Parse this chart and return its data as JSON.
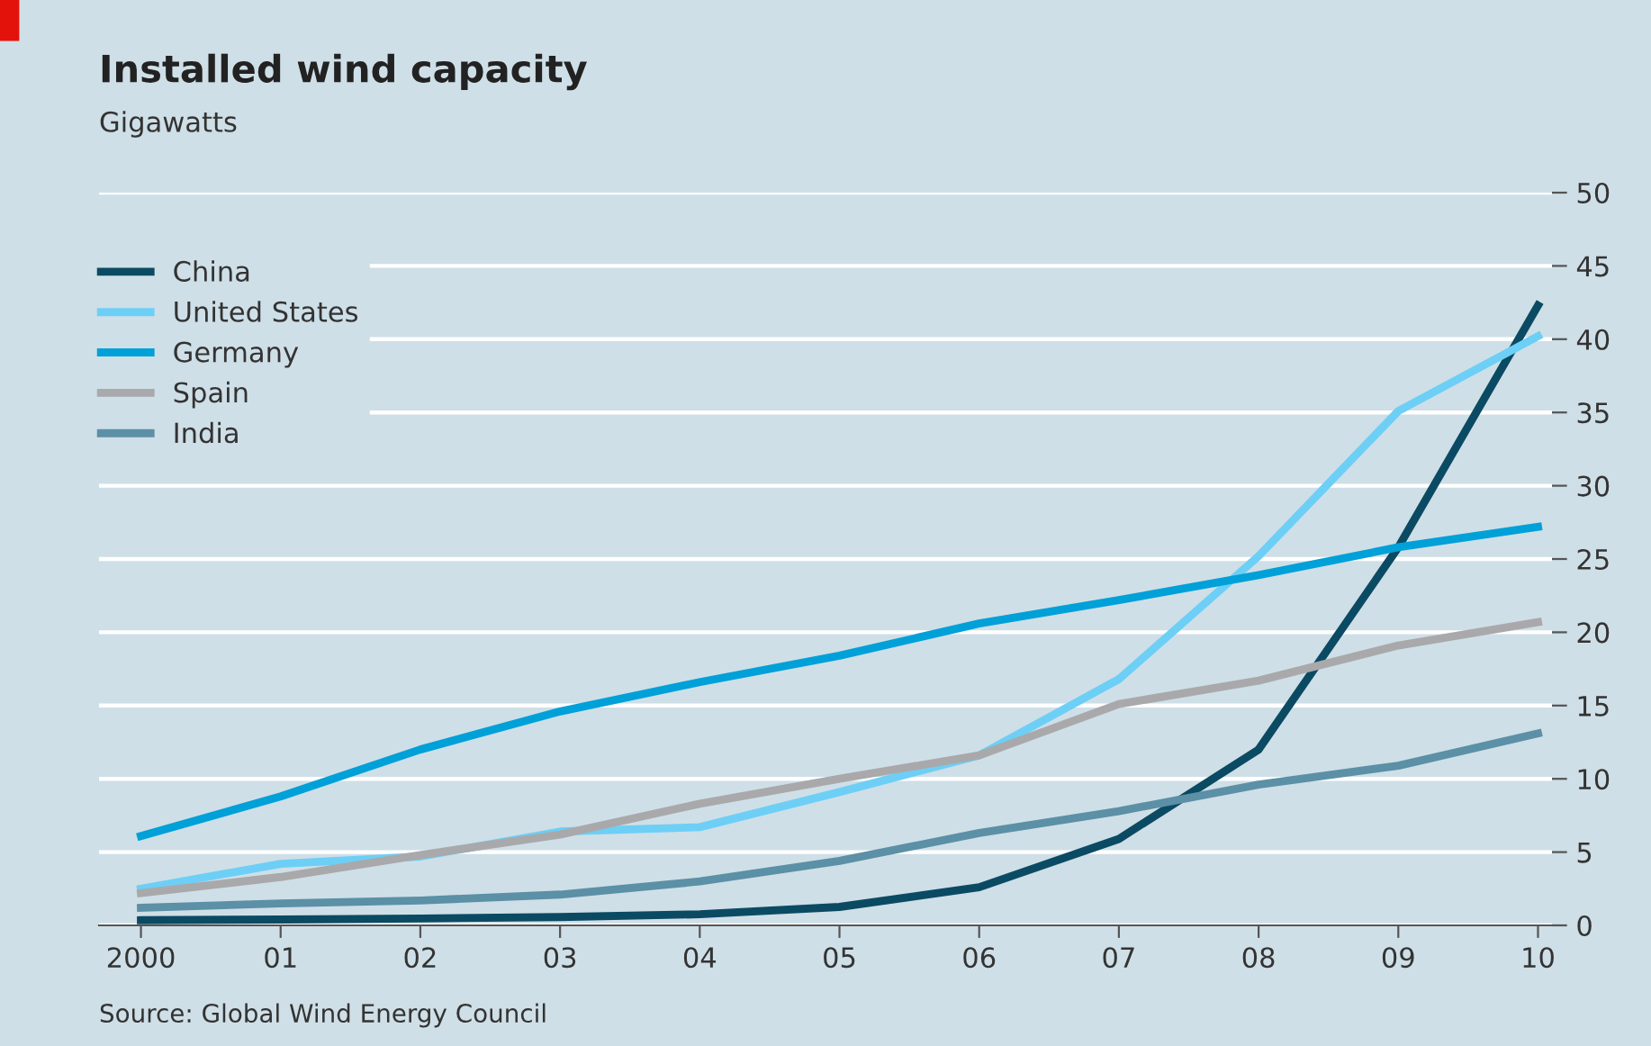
{
  "chart_data": {
    "type": "line",
    "title": "Installed wind capacity",
    "subtitle": "Gigawatts",
    "categories": [
      "2000",
      "01",
      "02",
      "03",
      "04",
      "05",
      "06",
      "07",
      "08",
      "09",
      "10"
    ],
    "series": [
      {
        "name": "China",
        "color": "#0b4a63",
        "values": [
          0.35,
          0.4,
          0.47,
          0.57,
          0.76,
          1.26,
          2.6,
          5.9,
          12.0,
          25.8,
          42.3
        ]
      },
      {
        "name": "United States",
        "color": "#6dcff6",
        "values": [
          2.5,
          4.2,
          4.7,
          6.4,
          6.7,
          9.1,
          11.6,
          16.8,
          25.2,
          35.1,
          40.2
        ]
      },
      {
        "name": "Germany",
        "color": "#00a0d8",
        "values": [
          6.1,
          8.8,
          12.0,
          14.6,
          16.6,
          18.4,
          20.6,
          22.2,
          23.9,
          25.8,
          27.2
        ]
      },
      {
        "name": "Spain",
        "color": "#a9a9ab",
        "values": [
          2.2,
          3.3,
          4.8,
          6.2,
          8.3,
          10.0,
          11.6,
          15.1,
          16.7,
          19.1,
          20.7
        ]
      },
      {
        "name": "India",
        "color": "#5b90a6",
        "values": [
          1.2,
          1.5,
          1.7,
          2.1,
          3.0,
          4.4,
          6.3,
          7.8,
          9.6,
          10.9,
          13.1
        ]
      }
    ],
    "ylim": [
      0,
      50
    ],
    "yticks": [
      0,
      5,
      10,
      15,
      20,
      25,
      30,
      35,
      40,
      45,
      50
    ],
    "grid": "y",
    "legend": "top left",
    "marker": "none",
    "line_style": "solid",
    "annotations": [
      "Source: Global Wind Energy Council"
    ]
  }
}
